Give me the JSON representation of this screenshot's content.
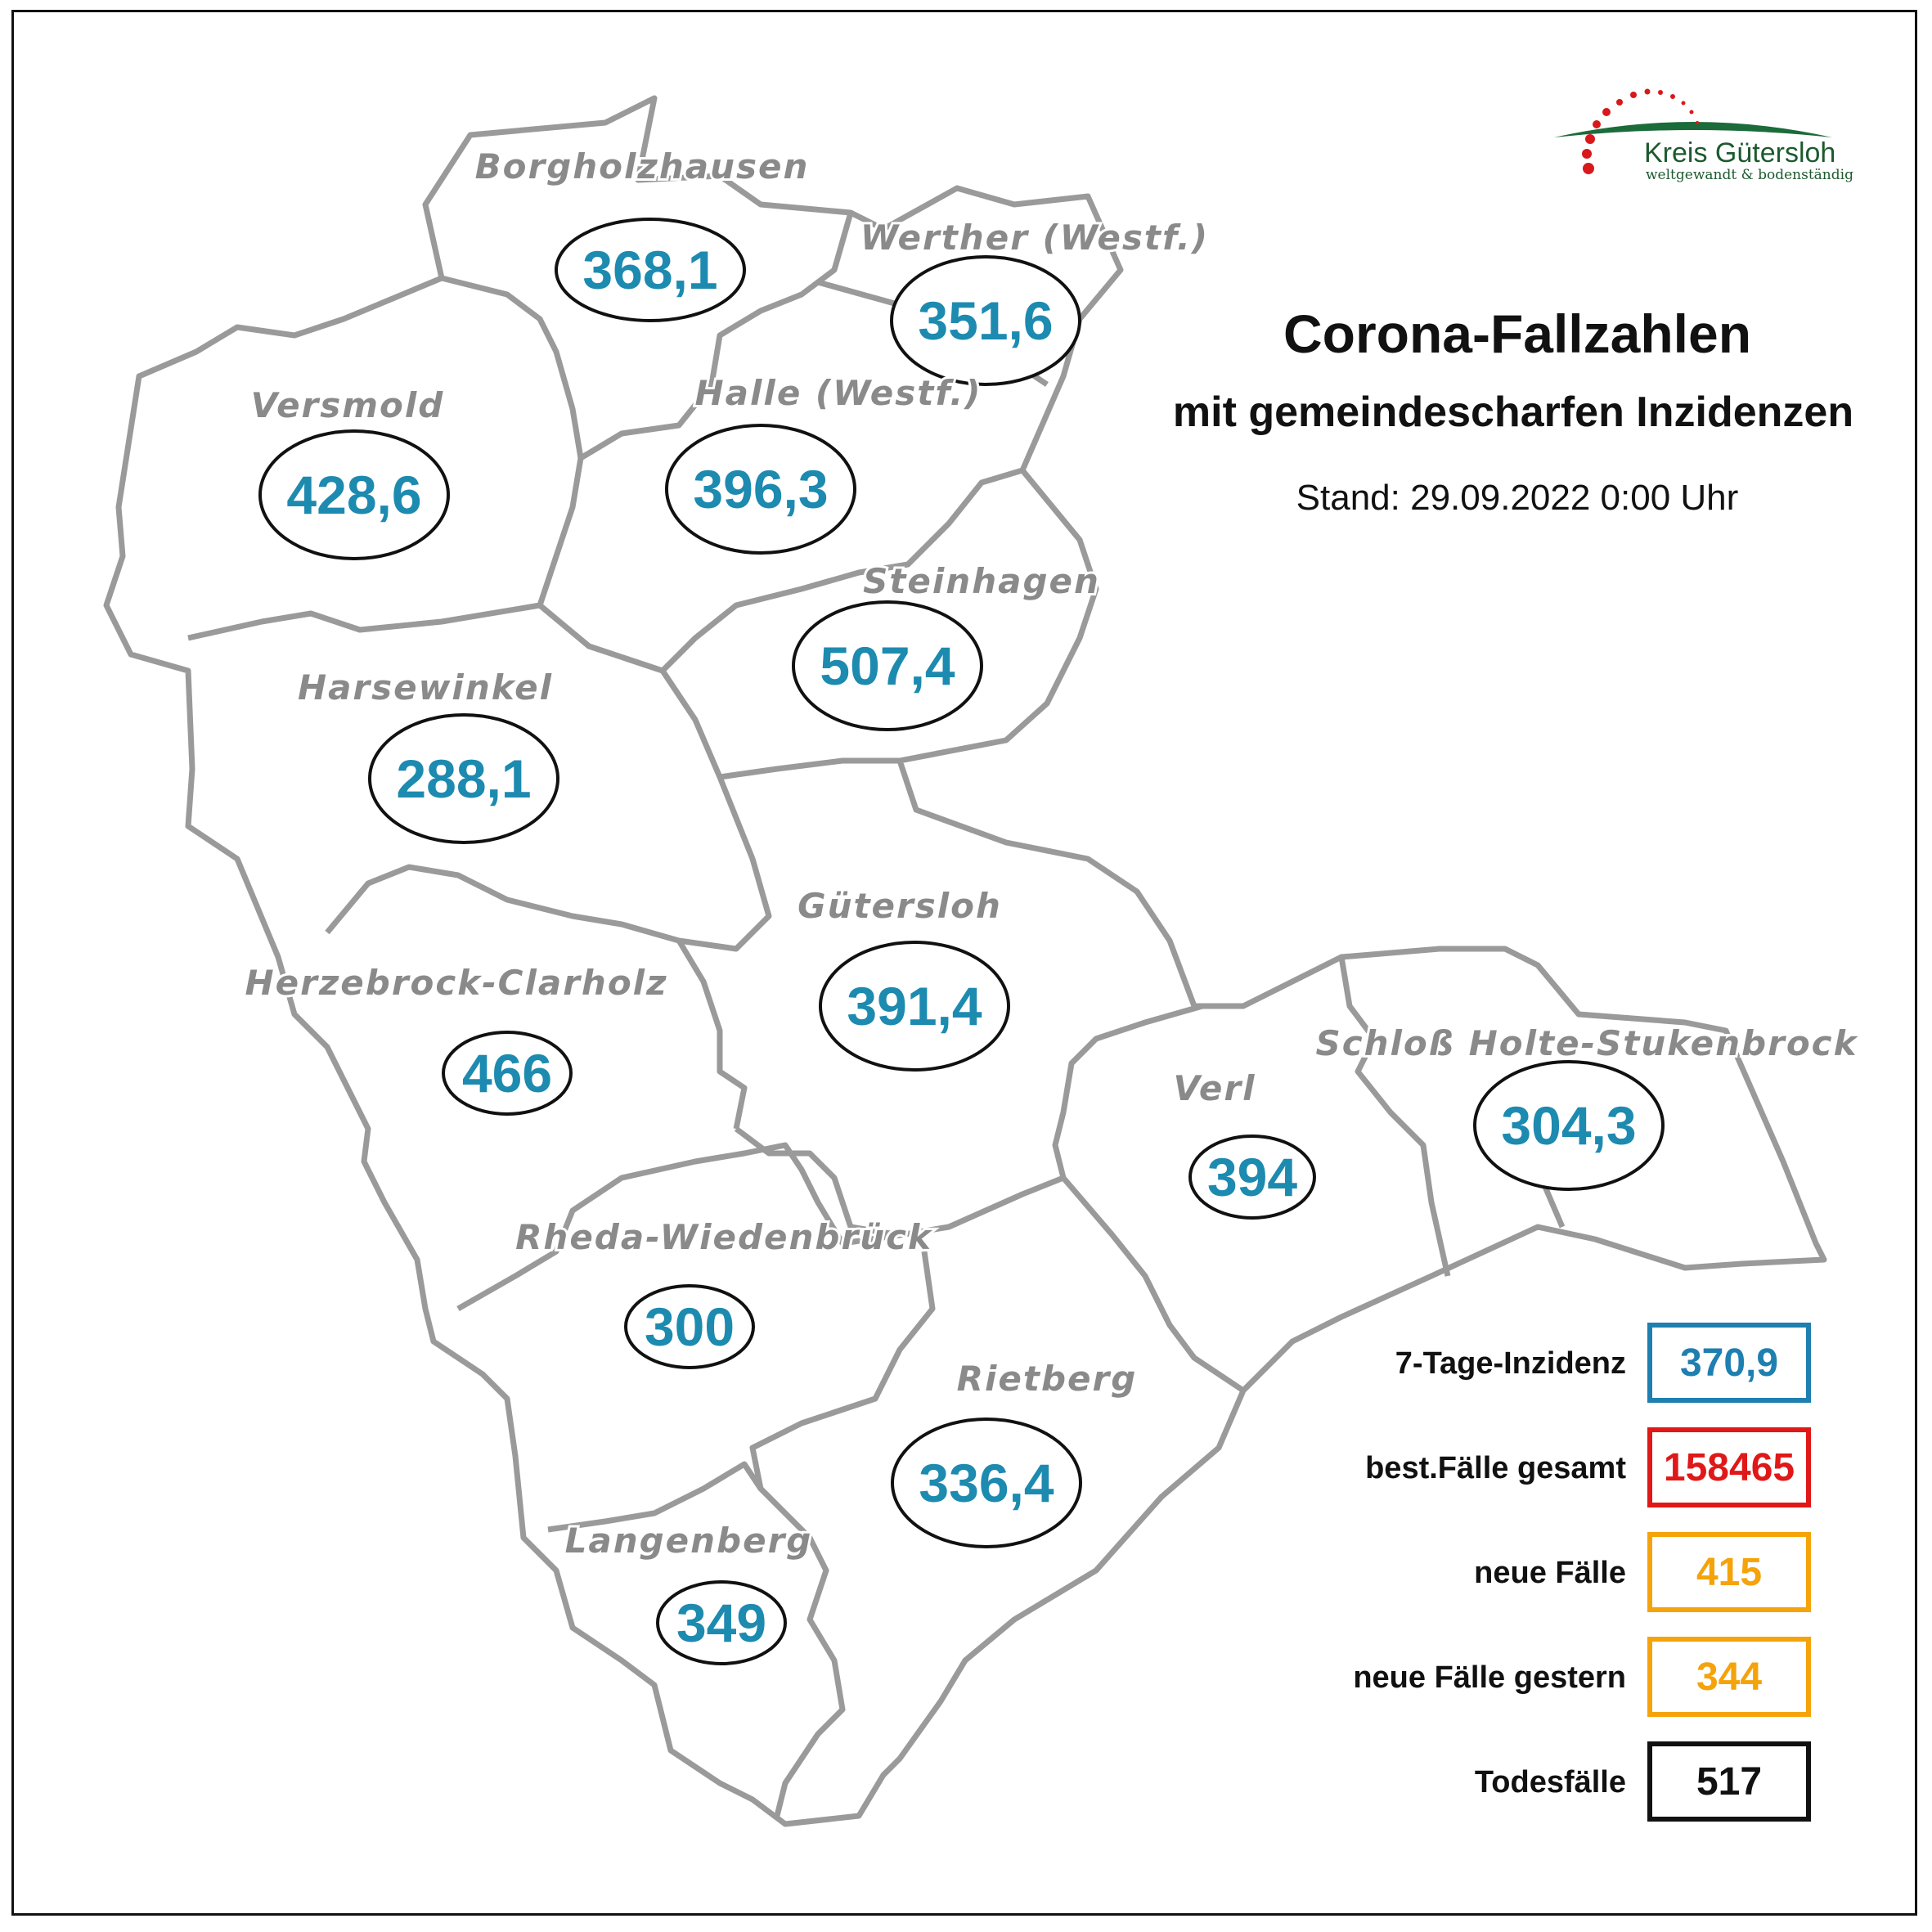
{
  "header": {
    "title": "Corona-Fallzahlen",
    "subtitle": "mit gemeindescharfen Inzidenzen",
    "stand": "Stand: 29.09.2022 0:00 Uhr"
  },
  "logo": {
    "name": "Kreis Gütersloh",
    "tagline": "weltgewandt & bodenständig"
  },
  "colors": {
    "incidence_blue": "#1d8ab0",
    "total_red": "#e01818",
    "new_orange": "#f5a30a",
    "death_black": "#111111",
    "box_blue": "#1e7fb0",
    "border_grey": "#9a9a9a"
  },
  "municipalities": [
    {
      "name": "Borgholzhausen",
      "incidence": "368,1"
    },
    {
      "name": "Werther (Westf.)",
      "incidence": "351,6"
    },
    {
      "name": "Versmold",
      "incidence": "428,6"
    },
    {
      "name": "Halle (Westf.)",
      "incidence": "396,3"
    },
    {
      "name": "Steinhagen",
      "incidence": "507,4"
    },
    {
      "name": "Harsewinkel",
      "incidence": "288,1"
    },
    {
      "name": "Gütersloh",
      "incidence": "391,4"
    },
    {
      "name": "Herzebrock-Clarholz",
      "incidence": "466"
    },
    {
      "name": "Verl",
      "incidence": "394"
    },
    {
      "name": "Schloß Holte-Stukenbrock",
      "incidence": "304,3"
    },
    {
      "name": "Rheda-Wiedenbrück",
      "incidence": "300"
    },
    {
      "name": "Rietberg",
      "incidence": "336,4"
    },
    {
      "name": "Langenberg",
      "incidence": "349"
    }
  ],
  "stats": [
    {
      "label": "7-Tage-Inzidenz",
      "value": "370,9"
    },
    {
      "label": "best.Fälle gesamt",
      "value": "158465"
    },
    {
      "label": "neue Fälle",
      "value": "415"
    },
    {
      "label": "neue Fälle gestern",
      "value": "344"
    },
    {
      "label": "Todesfälle",
      "value": "517"
    }
  ]
}
